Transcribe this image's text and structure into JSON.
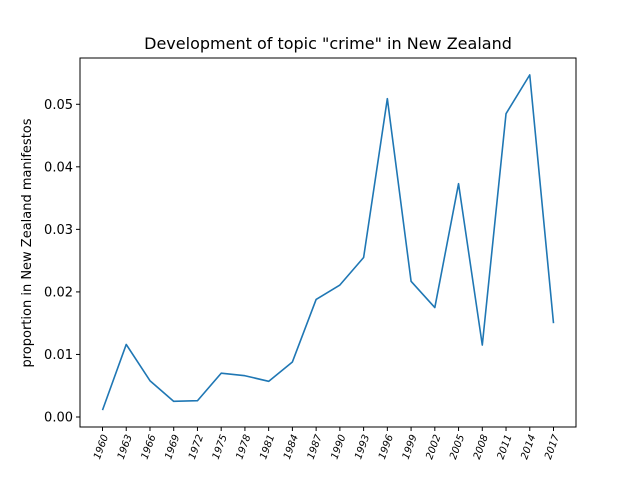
{
  "chart_data": {
    "type": "line",
    "title": "Development of topic \"crime\" in New Zealand",
    "xlabel": "",
    "ylabel": "proportion in New Zealand manifestos",
    "categories": [
      "1960",
      "1963",
      "1966",
      "1969",
      "1972",
      "1975",
      "1978",
      "1981",
      "1984",
      "1987",
      "1990",
      "1993",
      "1996",
      "1999",
      "2002",
      "2005",
      "2008",
      "2011",
      "2014",
      "2017"
    ],
    "series": [
      {
        "values": [
          0.0011,
          0.0116,
          0.0058,
          0.0025,
          0.0026,
          0.007,
          0.0066,
          0.0057,
          0.0088,
          0.0188,
          0.0211,
          0.0255,
          0.0509,
          0.0217,
          0.0175,
          0.0373,
          0.0115,
          0.0485,
          0.0547,
          0.015
        ],
        "color": "#1f77b4"
      }
    ],
    "yticks": [
      "0.00",
      "0.01",
      "0.02",
      "0.03",
      "0.04",
      "0.05"
    ],
    "ytick_values": [
      0,
      0.01,
      0.02,
      0.03,
      0.04,
      0.05
    ],
    "ylim": [
      -0.0016,
      0.0574
    ],
    "grid": false
  }
}
